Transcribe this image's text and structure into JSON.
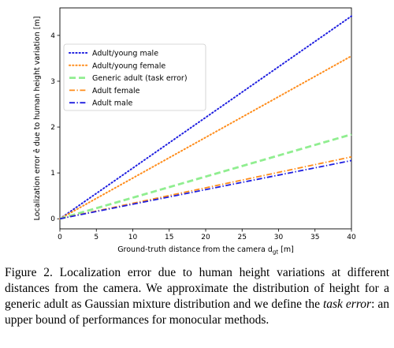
{
  "chart_data": {
    "type": "line",
    "title": "",
    "xlabel": "Ground-truth distance from the camera d",
    "xlabel_sub": "gt",
    "xlabel_unit": " [m]",
    "ylabel": "Localization error ê  due to human height variation [m]",
    "xlim": [
      0,
      40
    ],
    "ylim": [
      -0.22,
      4.6
    ],
    "xticks": [
      0,
      5,
      10,
      15,
      20,
      25,
      30,
      35,
      40
    ],
    "yticks": [
      0,
      1,
      2,
      3,
      4
    ],
    "grid": false,
    "legend_position": "upper-left",
    "series": [
      {
        "name": "Adult/young male",
        "color": "#1f1fe0",
        "style": "dotted",
        "x": [
          0,
          40
        ],
        "y": [
          0,
          4.42
        ]
      },
      {
        "name": "Adult/young female",
        "color": "#ff8c1a",
        "style": "dotted",
        "x": [
          0,
          40
        ],
        "y": [
          0,
          3.55
        ]
      },
      {
        "name": "Generic adult (task error)",
        "color": "#90ee90",
        "style": "dashed",
        "x": [
          0,
          40
        ],
        "y": [
          0,
          1.84
        ]
      },
      {
        "name": "Adult female",
        "color": "#ff8c1a",
        "style": "dashdot",
        "x": [
          0,
          40
        ],
        "y": [
          0,
          1.35
        ]
      },
      {
        "name": "Adult male",
        "color": "#1f1fe0",
        "style": "dashdot",
        "x": [
          0,
          40
        ],
        "y": [
          0,
          1.27
        ]
      }
    ]
  },
  "caption": {
    "part1": "Figure 2. Localization error due to human height variations at different distances from the camera.  We approximate the distribution of height for a generic adult as Gaussian mixture distribution and we define the ",
    "emph": "task error",
    "part2": ": an upper bound of performances for monocular methods."
  }
}
